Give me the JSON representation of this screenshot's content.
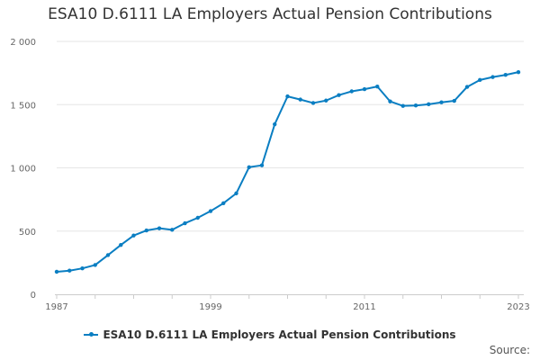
{
  "chart_data": {
    "type": "line",
    "title": "ESA10 D.6111 LA Employers Actual Pension Contributions",
    "xlabel": "",
    "ylabel": "",
    "x_range": [
      1987,
      2023
    ],
    "ylim": [
      0,
      2000
    ],
    "x_ticks": [
      "1987",
      "1999",
      "2011",
      "2023"
    ],
    "y_ticks": [
      {
        "value": 0,
        "label": "0"
      },
      {
        "value": 500,
        "label": "500"
      },
      {
        "value": 1000,
        "label": "1 000"
      },
      {
        "value": 1500,
        "label": "1 500"
      },
      {
        "value": 2000,
        "label": "2 000"
      }
    ],
    "grid": true,
    "legend": "bottom",
    "series": [
      {
        "name": "ESA10 D.6111 LA Employers Actual Pension Contributions",
        "color": "#0a7ec2",
        "x": [
          1987,
          1988,
          1989,
          1990,
          1991,
          1992,
          1993,
          1994,
          1995,
          1996,
          1997,
          1998,
          1999,
          2000,
          2001,
          2002,
          2003,
          2004,
          2005,
          2006,
          2007,
          2008,
          2009,
          2010,
          2011,
          2012,
          2013,
          2014,
          2015,
          2016,
          2017,
          2018,
          2019,
          2020,
          2021,
          2022,
          2023
        ],
        "values": [
          178,
          187,
          205,
          232,
          310,
          390,
          465,
          505,
          522,
          510,
          562,
          605,
          658,
          720,
          798,
          1005,
          1020,
          1345,
          1565,
          1540,
          1513,
          1532,
          1575,
          1605,
          1622,
          1643,
          1525,
          1490,
          1493,
          1503,
          1518,
          1530,
          1640,
          1695,
          1718,
          1735,
          1757
        ]
      }
    ]
  },
  "source_label": "Source:"
}
